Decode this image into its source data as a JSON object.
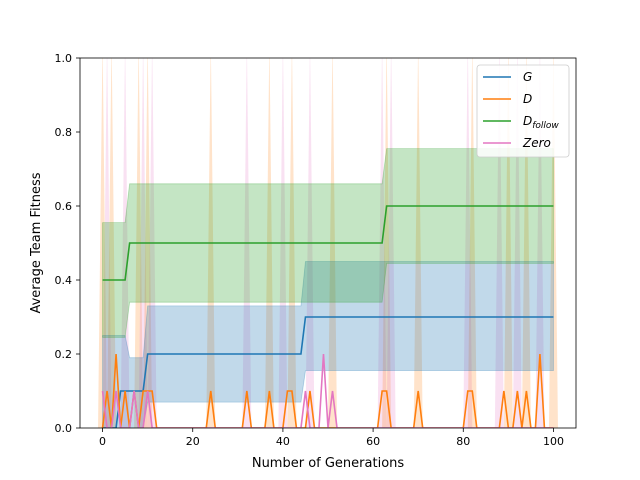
{
  "chart_data": {
    "type": "line",
    "title": "",
    "xlabel": "Number of Generations",
    "ylabel": "Average Team Fitness",
    "xlim": [
      -5,
      105
    ],
    "ylim": [
      0,
      1
    ],
    "xticks": [
      0,
      20,
      40,
      60,
      80,
      100
    ],
    "xtick_labels": [
      "0",
      "20",
      "40",
      "60",
      "80",
      "100"
    ],
    "yticks": [
      0,
      0.2,
      0.4,
      0.6,
      0.8,
      1.0
    ],
    "ytick_labels": [
      "0.0",
      "0.2",
      "0.4",
      "0.6",
      "0.8",
      "1.0"
    ],
    "grid": false,
    "legend_position": "upper right",
    "series": [
      {
        "name": "G",
        "label_main": "G",
        "label_sub": "",
        "color": "#1f77b4",
        "line": [
          [
            0,
            0
          ],
          [
            3,
            0
          ],
          [
            4,
            0.1
          ],
          [
            9,
            0.1
          ],
          [
            10,
            0.2
          ],
          [
            44,
            0.2
          ],
          [
            45,
            0.3
          ],
          [
            100,
            0.3
          ]
        ],
        "band_upper": [
          [
            0,
            0.25
          ],
          [
            5,
            0.25
          ],
          [
            6,
            0.19
          ],
          [
            9,
            0.19
          ],
          [
            10,
            0.33
          ],
          [
            44,
            0.33
          ],
          [
            45,
            0.45
          ],
          [
            100,
            0.45
          ]
        ],
        "band_lower": [
          [
            0,
            0
          ],
          [
            9,
            0
          ],
          [
            10,
            0.07
          ],
          [
            44,
            0.07
          ],
          [
            45,
            0.155
          ],
          [
            100,
            0.155
          ]
        ]
      },
      {
        "name": "D",
        "label_main": "D",
        "label_sub": "",
        "color": "#ff7f0e",
        "line": [
          [
            0,
            0
          ],
          [
            1,
            0.1
          ],
          [
            2,
            0
          ],
          [
            3,
            0.2
          ],
          [
            4,
            0
          ],
          [
            5,
            0.1
          ],
          [
            6,
            0
          ],
          [
            7,
            0.1
          ],
          [
            8,
            0
          ],
          [
            9,
            0.1
          ],
          [
            10,
            0.1
          ],
          [
            11,
            0.1
          ],
          [
            12,
            0
          ],
          [
            23,
            0
          ],
          [
            24,
            0.1
          ],
          [
            25,
            0
          ],
          [
            31,
            0
          ],
          [
            32,
            0.1
          ],
          [
            33,
            0
          ],
          [
            36,
            0
          ],
          [
            37,
            0.1
          ],
          [
            38,
            0
          ],
          [
            40,
            0
          ],
          [
            41,
            0.1
          ],
          [
            42,
            0.1
          ],
          [
            43,
            0
          ],
          [
            45,
            0
          ],
          [
            46,
            0.1
          ],
          [
            47,
            0
          ],
          [
            61,
            0
          ],
          [
            62,
            0.1
          ],
          [
            63,
            0.1
          ],
          [
            64,
            0
          ],
          [
            69,
            0
          ],
          [
            70,
            0.1
          ],
          [
            71,
            0
          ],
          [
            80,
            0
          ],
          [
            81,
            0.1
          ],
          [
            82,
            0.1
          ],
          [
            83,
            0
          ],
          [
            88,
            0
          ],
          [
            89,
            0.1
          ],
          [
            90,
            0
          ],
          [
            91,
            0
          ],
          [
            92,
            0.1
          ],
          [
            93,
            0
          ],
          [
            94,
            0.1
          ],
          [
            95,
            0
          ],
          [
            96,
            0
          ],
          [
            97,
            0.2
          ],
          [
            98,
            0
          ],
          [
            100,
            0
          ]
        ]
      },
      {
        "name": "D_follow",
        "label_main": "D",
        "label_sub": "follow",
        "color": "#2ca02c",
        "line": [
          [
            0,
            0.4
          ],
          [
            5,
            0.4
          ],
          [
            6,
            0.5
          ],
          [
            62,
            0.5
          ],
          [
            63,
            0.6
          ],
          [
            100,
            0.6
          ]
        ],
        "band_upper": [
          [
            0,
            0.555
          ],
          [
            5,
            0.555
          ],
          [
            6,
            0.66
          ],
          [
            62,
            0.66
          ],
          [
            63,
            0.755
          ],
          [
            100,
            0.755
          ]
        ],
        "band_lower": [
          [
            0,
            0.245
          ],
          [
            5,
            0.245
          ],
          [
            6,
            0.34
          ],
          [
            62,
            0.34
          ],
          [
            63,
            0.445
          ],
          [
            100,
            0.445
          ]
        ]
      },
      {
        "name": "Zero",
        "label_main": "Zero",
        "label_sub": "",
        "color": "#e377c2",
        "line": [
          [
            0,
            0.1
          ],
          [
            1,
            0
          ],
          [
            2,
            0
          ],
          [
            3,
            0.1
          ],
          [
            4,
            0
          ],
          [
            6,
            0
          ],
          [
            7,
            0.1
          ],
          [
            8,
            0
          ],
          [
            9,
            0
          ],
          [
            10,
            0.1
          ],
          [
            11,
            0
          ],
          [
            44,
            0
          ],
          [
            45,
            0.1
          ],
          [
            46,
            0
          ],
          [
            48,
            0
          ],
          [
            49,
            0.2
          ],
          [
            50,
            0
          ],
          [
            51,
            0.1
          ],
          [
            52,
            0
          ],
          [
            100,
            0
          ]
        ]
      }
    ],
    "noise_spikes": [
      0,
      1,
      2,
      5,
      8,
      9,
      10,
      11,
      24,
      32,
      37,
      40,
      42,
      46,
      51,
      62,
      63,
      64,
      70,
      81,
      82,
      88,
      90,
      92,
      94,
      97,
      100
    ]
  }
}
